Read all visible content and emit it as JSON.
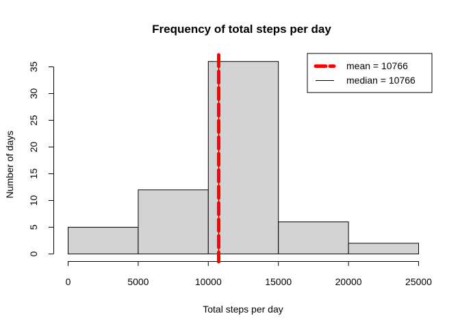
{
  "chart_data": {
    "type": "bar",
    "subtype": "histogram",
    "title": "Frequency of total steps per day",
    "xlabel": "Total steps per day",
    "ylabel": "Number of days",
    "bins": [
      {
        "from": 0,
        "to": 5000,
        "count": 5
      },
      {
        "from": 5000,
        "to": 10000,
        "count": 12
      },
      {
        "from": 10000,
        "to": 15000,
        "count": 36
      },
      {
        "from": 15000,
        "to": 20000,
        "count": 6
      },
      {
        "from": 20000,
        "to": 25000,
        "count": 2
      }
    ],
    "xlim": [
      0,
      25000
    ],
    "ylim": [
      0,
      35
    ],
    "x_ticks": [
      0,
      5000,
      10000,
      15000,
      20000,
      25000
    ],
    "x_tick_labels": [
      "0",
      "5000",
      "10000",
      "15000",
      "20000",
      "25000"
    ],
    "y_ticks": [
      0,
      5,
      10,
      15,
      20,
      25,
      30,
      35
    ],
    "y_tick_labels": [
      "0",
      "5",
      "10",
      "15",
      "20",
      "25",
      "30",
      "35"
    ],
    "grid": false,
    "bar_fill": "#d3d3d3",
    "bar_stroke": "#000000",
    "reference_lines": [
      {
        "name": "mean",
        "value": 10766,
        "color": "#ff0000",
        "style": "dashed"
      },
      {
        "name": "median",
        "value": 10766,
        "color": "#000000",
        "style": "solid"
      }
    ],
    "legend": {
      "position": "top-right",
      "entries": [
        {
          "label": "mean =  10766",
          "color": "#ff0000",
          "style": "dashed"
        },
        {
          "label": "median =  10766",
          "color": "#000000",
          "style": "solid"
        }
      ]
    }
  }
}
